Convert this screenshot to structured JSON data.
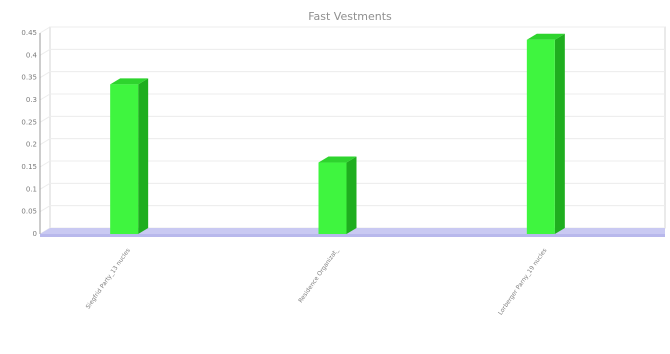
{
  "chart_data": {
    "type": "bar",
    "title": "Fast Vestments",
    "xlabel": "",
    "ylabel": "",
    "categories": [
      "Siegfrid Party_13 nucles",
      "Residence Organizat_",
      "Lorberger Parny_19 nucles"
    ],
    "values": [
      0.335,
      0.16,
      0.435
    ],
    "ylim": [
      0,
      0.45
    ],
    "yticks": [
      0,
      0.05,
      0.1,
      0.15,
      0.2,
      0.25,
      0.3,
      0.35,
      0.4,
      0.45
    ],
    "ytick_labels": [
      "0",
      "0.05",
      "0.1",
      "0.15",
      "0.2",
      "0.25",
      "0.3",
      "0.35",
      "0.4",
      "0.45"
    ],
    "grid": true,
    "legend": "none",
    "bar_color": "#3ff53f",
    "floor_color": "#c9c9f2"
  }
}
